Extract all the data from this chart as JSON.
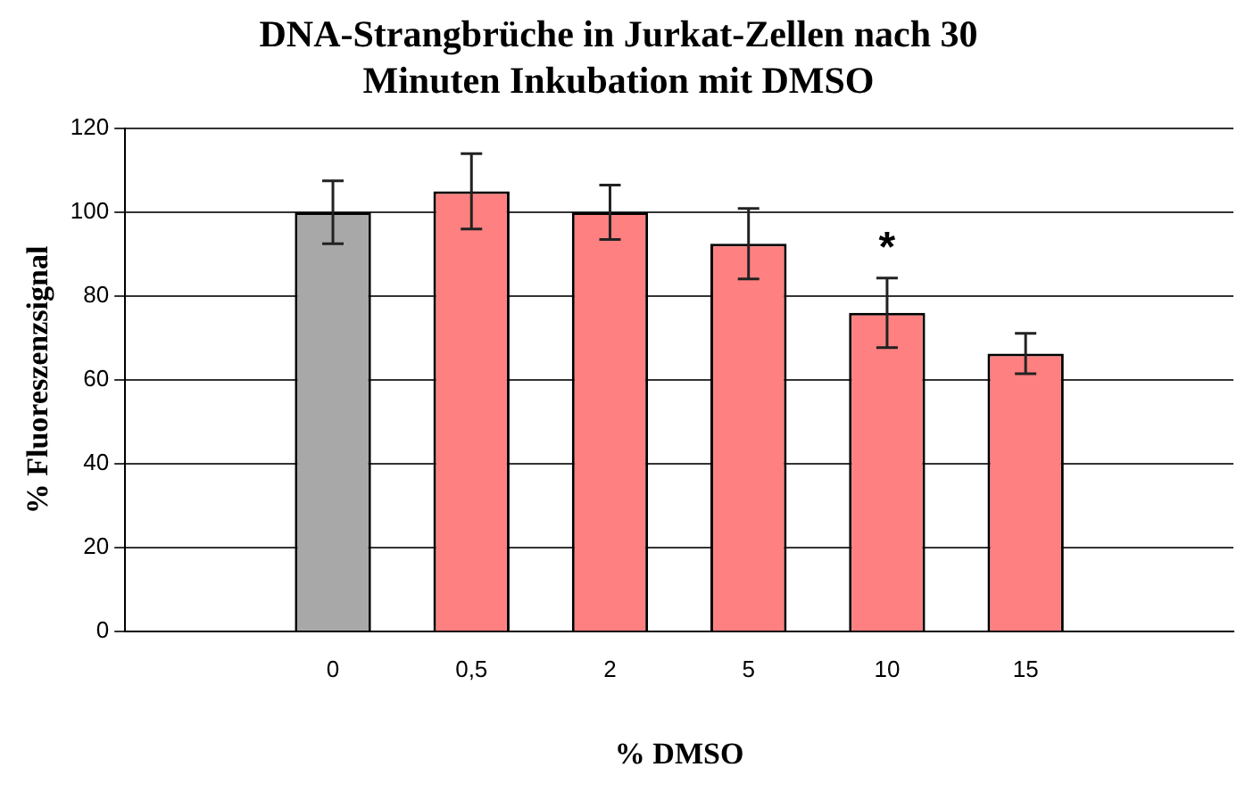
{
  "chart_data": {
    "type": "bar",
    "title": "DNA-Strangbrüche in Jurkat-Zellen nach 30 Minuten Inkubation mit DMSO",
    "xlabel": "% DMSO",
    "ylabel": "% Fluoreszenzsignal",
    "categories": [
      null,
      "0",
      "0,5",
      "2",
      "5",
      "10",
      "15",
      null
    ],
    "values": [
      null,
      100,
      105,
      100,
      92.5,
      76,
      66.3,
      null
    ],
    "errors": [
      null,
      7.5,
      9,
      6.5,
      8.4,
      8.3,
      4.8,
      null
    ],
    "colors": [
      "#ff8080",
      "#a8a8a8",
      "#ff8080",
      "#ff8080",
      "#ff8080",
      "#ff8080",
      "#ff8080",
      "#ff8080"
    ],
    "ylim": [
      0,
      120
    ],
    "yticks": [
      0,
      20,
      40,
      60,
      80,
      100,
      120
    ],
    "grid": "y",
    "annotations": [
      {
        "text": "*",
        "x": "10",
        "y": 76
      }
    ]
  }
}
